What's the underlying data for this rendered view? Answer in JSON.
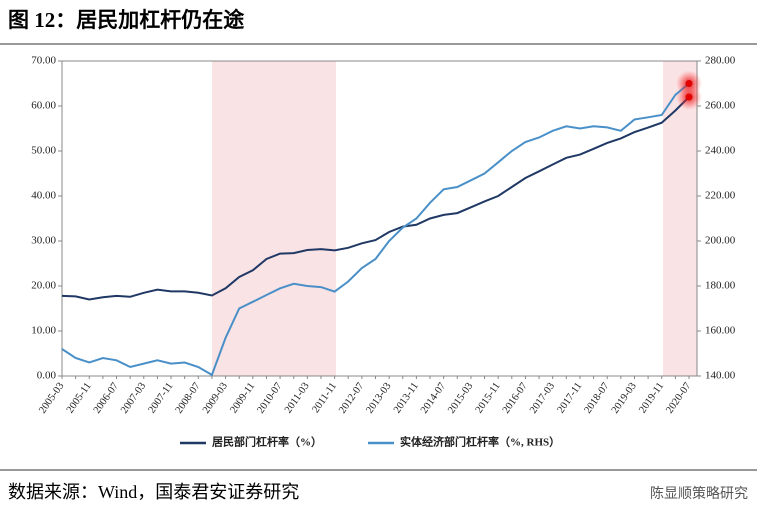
{
  "chart_data": {
    "type": "line",
    "title": "图 12：居民加杠杆仍在途",
    "source": "数据来源：Wind，国泰君安证券研究",
    "watermark": "陈显顺策略研究",
    "categories": [
      "2005-03",
      null,
      "2005-11",
      null,
      "2006-07",
      null,
      "2007-03",
      null,
      "2007-11",
      null,
      "2008-07",
      null,
      "2009-03",
      null,
      "2009-11",
      null,
      "2010-07",
      null,
      "2011-03",
      null,
      "2011-11",
      null,
      "2012-07",
      null,
      "2013-03",
      null,
      "2013-11",
      null,
      "2014-07",
      null,
      "2015-03",
      null,
      "2015-11",
      null,
      "2016-07",
      null,
      "2017-03",
      null,
      "2017-11",
      null,
      "2018-07",
      null,
      "2019-03",
      null,
      "2019-11",
      null,
      "2020-07"
    ],
    "series": [
      {
        "name": "居民部门杠杆率（%）",
        "color": "#1f3864",
        "axis": "y",
        "values": [
          17.8,
          17.7,
          17.0,
          17.5,
          17.8,
          17.6,
          18.5,
          19.2,
          18.8,
          18.8,
          18.5,
          17.9,
          19.5,
          22.0,
          23.5,
          26.0,
          27.2,
          27.3,
          28.0,
          28.2,
          27.9,
          28.5,
          29.5,
          30.2,
          32.0,
          33.2,
          33.6,
          35.0,
          35.8,
          36.2,
          37.5,
          38.8,
          40.0,
          42.0,
          44.0,
          45.5,
          47.0,
          48.5,
          49.2,
          50.5,
          51.8,
          52.8,
          54.2,
          55.2,
          56.3,
          59.0,
          62.0
        ]
      },
      {
        "name": "实体经济部门杠杆率（%, RHS）",
        "color": "#4a90c8",
        "axis": "y2",
        "values": [
          152,
          148,
          146,
          148,
          147,
          144,
          145.5,
          147,
          145.5,
          146,
          144,
          140.5,
          157,
          170,
          173,
          176,
          179,
          181,
          180,
          179.5,
          177.5,
          182,
          188,
          192,
          200,
          206,
          210,
          217,
          223,
          224,
          227,
          230,
          235,
          240,
          244,
          246,
          249,
          251,
          250,
          251,
          250.5,
          249,
          254,
          255,
          256,
          265,
          270
        ]
      }
    ],
    "ylim": [
      0,
      70
    ],
    "yticks": [
      {
        "value": 0,
        "label": "0.00"
      },
      {
        "value": 10,
        "label": "10.00"
      },
      {
        "value": 20,
        "label": "20.00"
      },
      {
        "value": 30,
        "label": "30.00"
      },
      {
        "value": 40,
        "label": "40.00"
      },
      {
        "value": 50,
        "label": "50.00"
      },
      {
        "value": 60,
        "label": "60.00"
      },
      {
        "value": 70,
        "label": "70.00"
      }
    ],
    "y2lim": [
      140,
      280
    ],
    "y2ticks": [
      {
        "value": 140,
        "label": "140.00"
      },
      {
        "value": 160,
        "label": "160.00"
      },
      {
        "value": 180,
        "label": "180.00"
      },
      {
        "value": 200,
        "label": "200.00"
      },
      {
        "value": 220,
        "label": "220.00"
      },
      {
        "value": 240,
        "label": "240.00"
      },
      {
        "value": 260,
        "label": "260.00"
      },
      {
        "value": 280,
        "label": "280.00"
      }
    ],
    "legend": "bottom"
  }
}
